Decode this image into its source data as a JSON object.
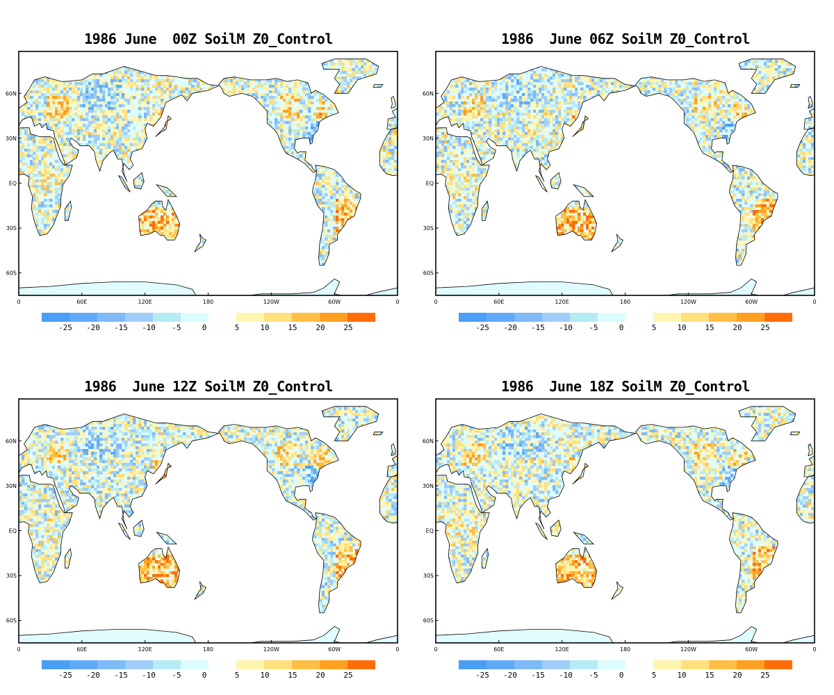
{
  "panels": [
    {
      "title": "1986 June  00Z SoilM Z0_Control"
    },
    {
      "title": "1986  June 06Z SoilM Z0_Control"
    },
    {
      "title": "1986  June 12Z SoilM Z0_Control"
    },
    {
      "title": "1986  June 18Z SoilM Z0_Control"
    }
  ],
  "axes": {
    "lat_labels": [
      "60N",
      "30N",
      "EQ",
      "30S",
      "60S"
    ],
    "lon_labels": [
      "0",
      "60E",
      "120E",
      "180",
      "120W",
      "60W",
      "0"
    ]
  },
  "colorbar": {
    "negative_labels": [
      "-25",
      "-20",
      "-15",
      "-10",
      "-5",
      "0"
    ],
    "positive_labels": [
      "5",
      "10",
      "15",
      "20",
      "25"
    ],
    "negative_colors": [
      "#4a9ef5",
      "#5fa9f7",
      "#7dbaf7",
      "#9fcdf7",
      "#b5ebf5",
      "#dcfcff"
    ],
    "positive_colors": [
      "#fff5ad",
      "#ffe07d",
      "#ffbf45",
      "#ffa020",
      "#ff6d0a"
    ]
  },
  "colors": {
    "ocean": "#ffffff",
    "land_base": "#e0fcff",
    "coast": "#000000"
  }
}
